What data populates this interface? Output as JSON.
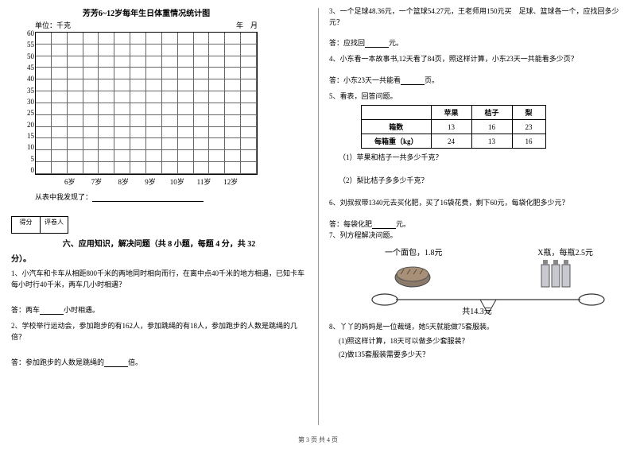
{
  "left": {
    "chart": {
      "title": "芳芳6~12岁每年生日体重情况统计图",
      "unit_label": "单位：千克",
      "date_label": "年　月",
      "y_ticks": [
        "60",
        "55",
        "50",
        "45",
        "40",
        "35",
        "30",
        "25",
        "20",
        "15",
        "10",
        "5",
        "0"
      ],
      "x_ticks": [
        "6岁",
        "7岁",
        "8岁",
        "9岁",
        "10岁",
        "11岁",
        "12岁"
      ],
      "grid_cols": 14,
      "grid_rows": 12,
      "border_color": "#666"
    },
    "discovery": "从表中我发现了：",
    "score": {
      "c1": "得分",
      "c2": "评卷人"
    },
    "section_title": "六、应用知识，解决问题（共 8 小题，每题 4 分，共 32",
    "section_cont": "分）。",
    "q1": "1、小汽车和卡车从相距800千米的两地同时相向而行，在离中点40千米的地方相遇，已知卡车每小时行40千米，两车几小时相遇？",
    "a1": "答：两车____小时相遇。",
    "q2": "2、学校举行运动会，参加跑步的有162人，参加跳绳的有18人，参加跑步的人数是跳绳的几倍？",
    "a2": "答：参加跑步的人数是跳绳的____倍。"
  },
  "right": {
    "q3": "3、一个足球48.36元，一个篮球54.27元，王老师用150元买　足球、篮球各一个，应找回多少元？",
    "a3": "答：应找回____元。",
    "q4": "4、小东看一本故事书,12天看了84页，照这样计算，小东23天一共能看多少页？",
    "a4": "答：小东23天一共能看____页。",
    "q5": "5、看表，回答问题。",
    "table": {
      "headers": [
        "",
        "苹果",
        "桔子",
        "梨"
      ],
      "rows": [
        [
          "箱数",
          "13",
          "16",
          "23"
        ],
        [
          "每箱重（kg）",
          "24",
          "13",
          "16"
        ]
      ]
    },
    "q5_1": "（1）苹果和桔子一共多少千克？",
    "q5_2": "（2）梨比桔子多多少千克？",
    "q6": "6、刘叔叔带1340元去买化肥，买了16袋花费，剩下60元，每袋化肥多少元？",
    "a6": "答：每袋化肥____元。",
    "q7": "7、列方程解决问题。",
    "bread_label": "一个面包，1.8元",
    "bottle_label": "X瓶，每瓶2.5元",
    "total_label": "共14.3元",
    "q8": "8、丫丫的妈妈是一位裁缝，她5天就能做75套服装。",
    "q8_1": "(1)照这样计算，18天可以做多少套服装？",
    "q8_2": "(2)做135套服装需要多少天？"
  },
  "footer": "第 3 页 共 4 页"
}
